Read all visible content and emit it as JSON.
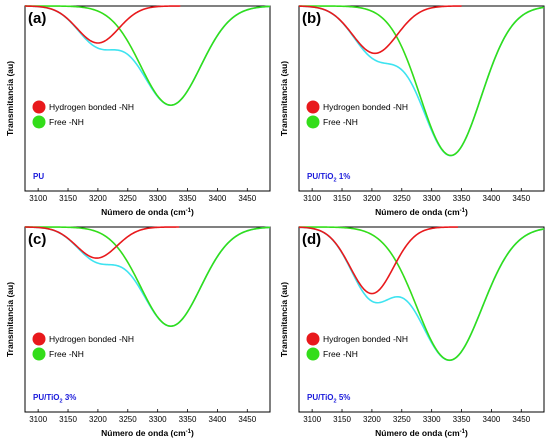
{
  "figure": {
    "colors": {
      "hydrogen": "#e8191c",
      "free": "#33dd1a",
      "sum": "#3ee3f0",
      "sample_label": "#1a1adb"
    }
  },
  "chart_data": [
    {
      "panel": "(a)",
      "type": "line",
      "sample_label": "PU",
      "sample_sub": "",
      "sample_suffix": "",
      "xlabel": "Número de onda (cm",
      "xlabel_sup": "-1",
      "xlabel_close": ")",
      "ylabel": "Transmitancia (au)",
      "xlim": [
        3078,
        3488
      ],
      "ylim": [
        0,
        1.25
      ],
      "xticks": [
        3100,
        3150,
        3200,
        3250,
        3300,
        3350,
        3400,
        3450
      ],
      "legend": [
        "Hydrogen bonded -NH",
        "Free -NH"
      ],
      "series": [
        {
          "name": "Hydrogen bonded -NH",
          "color": "#e8191c",
          "peak_x": 3200,
          "depth": 0.25,
          "fwhm": 82,
          "x_end": 3338
        },
        {
          "name": "Free -NH",
          "color": "#33dd1a",
          "peak_x": 3322,
          "depth": 0.67,
          "fwhm": 118,
          "x_end": 3488
        },
        {
          "role": "sum",
          "color": "#3ee3f0",
          "x_end": 3488
        }
      ]
    },
    {
      "panel": "(b)",
      "type": "line",
      "sample_label": "PU/TiO",
      "sample_sub": "2",
      "sample_suffix": " 1%",
      "xlabel": "Número de onda (cm",
      "xlabel_sup": "-1",
      "xlabel_close": ")",
      "ylabel": "Transmitancia (au)",
      "xlim": [
        3078,
        3488
      ],
      "ylim": [
        0,
        1.25
      ],
      "xticks": [
        3100,
        3150,
        3200,
        3250,
        3300,
        3350,
        3400,
        3450
      ],
      "legend": [
        "Hydrogen bonded -NH",
        "Free -NH"
      ],
      "series": [
        {
          "name": "Hydrogen bonded -NH",
          "color": "#e8191c",
          "peak_x": 3205,
          "depth": 0.32,
          "fwhm": 88,
          "x_end": 3350
        },
        {
          "name": "Free -NH",
          "color": "#33dd1a",
          "peak_x": 3332,
          "depth": 1.01,
          "fwhm": 120,
          "x_end": 3488
        },
        {
          "role": "sum",
          "color": "#3ee3f0",
          "x_end": 3488
        }
      ]
    },
    {
      "panel": "(c)",
      "type": "line",
      "sample_label": "PU/TiO",
      "sample_sub": "2",
      "sample_suffix": " 3%",
      "xlabel": "Número de onda (cm",
      "xlabel_sup": "-1",
      "xlabel_close": ")",
      "ylabel": "Transmitancia (au)",
      "xlim": [
        3078,
        3488
      ],
      "ylim": [
        0,
        1.25
      ],
      "xticks": [
        3100,
        3150,
        3200,
        3250,
        3300,
        3350,
        3400,
        3450
      ],
      "legend": [
        "Hydrogen bonded -NH",
        "Free -NH"
      ],
      "series": [
        {
          "name": "Hydrogen bonded -NH",
          "color": "#e8191c",
          "peak_x": 3198,
          "depth": 0.21,
          "fwhm": 80,
          "x_end": 3337
        },
        {
          "name": "Free -NH",
          "color": "#33dd1a",
          "peak_x": 3322,
          "depth": 0.67,
          "fwhm": 118,
          "x_end": 3488
        },
        {
          "role": "sum",
          "color": "#3ee3f0",
          "x_end": 3488
        }
      ]
    },
    {
      "panel": "(d)",
      "type": "line",
      "sample_label": "PU/TiO",
      "sample_sub": "2",
      "sample_suffix": " 5%",
      "xlabel": "Número de onda (cm",
      "xlabel_sup": "-1",
      "xlabel_close": ")",
      "ylabel": "Transmitancia (au)",
      "xlim": [
        3078,
        3488
      ],
      "ylim": [
        0,
        1.25
      ],
      "xticks": [
        3100,
        3150,
        3200,
        3250,
        3300,
        3350,
        3400,
        3450
      ],
      "legend": [
        "Hydrogen bonded -NH",
        "Free -NH"
      ],
      "series": [
        {
          "name": "Hydrogen bonded -NH",
          "color": "#e8191c",
          "peak_x": 3200,
          "depth": 0.45,
          "fwhm": 85,
          "x_end": 3345
        },
        {
          "name": "Free -NH",
          "color": "#33dd1a",
          "peak_x": 3330,
          "depth": 0.9,
          "fwhm": 128,
          "x_end": 3488
        },
        {
          "role": "sum",
          "color": "#3ee3f0",
          "x_end": 3488
        }
      ]
    }
  ]
}
